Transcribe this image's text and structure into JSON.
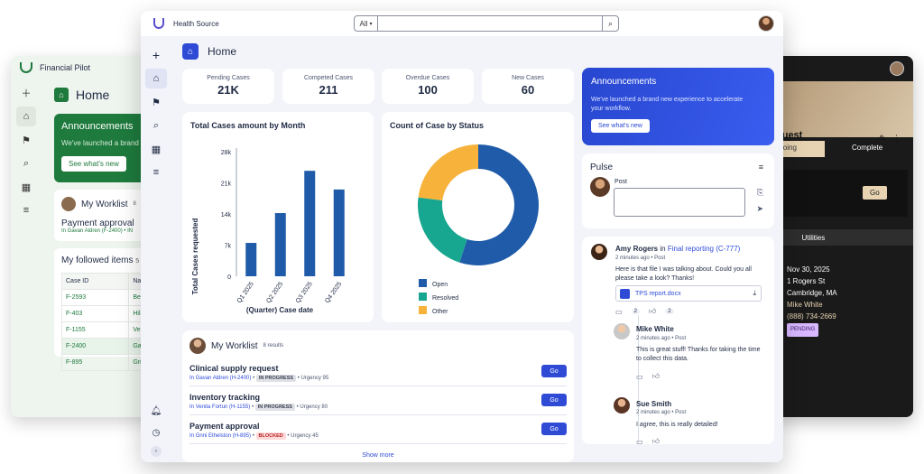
{
  "left_window": {
    "app_name": "Financial Pilot",
    "page_title": "Home",
    "announcement": {
      "title": "Announcements",
      "text": "We've launched a brand ne",
      "button": "See what's new"
    },
    "worklist": {
      "title": "My Worklist",
      "count": "8",
      "item_title": "Payment approval",
      "item_sub": "In Gavan Aldren (F-2400) • IN"
    },
    "followed": {
      "title": "My followed items",
      "count": "5",
      "columns": [
        "Case ID",
        "Name"
      ],
      "rows": [
        {
          "id": "F-2593",
          "name": "Beth"
        },
        {
          "id": "F-403",
          "name": "Hilari"
        },
        {
          "id": "F-1155",
          "name": "Venit"
        },
        {
          "id": "F-2400",
          "name": "Gava"
        },
        {
          "id": "F-895",
          "name": "Gnni"
        }
      ]
    }
  },
  "right_window": {
    "title_fragment": "quest",
    "stage_doing": "Doing",
    "stage_complete": "Complete",
    "go_label": "Go",
    "tab_1": "se",
    "tab_2": "Utilities",
    "date": "Nov 30, 2025",
    "address_1": "1 Rogers St",
    "address_2": "Cambridge, MA",
    "person": "Mike White",
    "phone": "(888) 734-2669",
    "status": "PENDING"
  },
  "main": {
    "app_name": "Health Source",
    "search": {
      "scope": "All",
      "placeholder": ""
    },
    "page_title": "Home",
    "kpis": [
      {
        "label": "Pending Cases",
        "value": "21K"
      },
      {
        "label": "Competed Cases",
        "value": "211"
      },
      {
        "label": "Overdue Cases",
        "value": "100"
      },
      {
        "label": "New Cases",
        "value": "60"
      }
    ],
    "announcement": {
      "title": "Announcements",
      "text": "We've launched a brand new experience to accelerate your workflow.",
      "button": "See what's new"
    },
    "pulse": {
      "title": "Pulse",
      "post_label": "Post"
    },
    "feed": {
      "post1": {
        "author": "Amy Rogers",
        "connector": "in",
        "target": "Final reporting (C-777)",
        "meta": "2 minutes ago • Post",
        "text": "Here is that file I was talking about. Could you all please take a look? Thanks!",
        "file": "TPS report.docx",
        "comments": "2",
        "likes": "2"
      },
      "reply1": {
        "author": "Mike White",
        "meta": "2 minutes ago • Post",
        "text": "This is great stuff! Thanks for taking the time to collect this data."
      },
      "reply2": {
        "author": "Sue Smith",
        "meta": "2 minutes ago • Post",
        "text": "I agree, this is really detailed!"
      }
    },
    "worklist": {
      "title": "My Worklist",
      "count": "8 results",
      "rows": [
        {
          "title": "Clinical supply request",
          "prefix": "In",
          "owner": "Gavan Aldren (H-2400)",
          "status": "IN PROGRESS",
          "urgency": "Urgency 95",
          "go": "Go"
        },
        {
          "title": "Inventory tracking",
          "prefix": "In",
          "owner": "Venita Fortun (H-1155)",
          "status": "IN PROGRESS",
          "urgency": "Urgency 80",
          "go": "Go"
        },
        {
          "title": "Payment approval",
          "prefix": "In",
          "owner": "Gnni Ethelston (H-895)",
          "status": "BLOCKED",
          "urgency": "Urgency 45",
          "go": "Go"
        }
      ],
      "show_more": "Show more"
    }
  },
  "chart_data": [
    {
      "type": "bar",
      "title": "Total Cases amount by Month",
      "xlabel": "(Quarter) Case date",
      "ylabel": "Total Cases requested",
      "categories": [
        "Q1 2025",
        "Q2 2025",
        "Q3 2025",
        "Q4 2025"
      ],
      "values": [
        7500,
        14200,
        23700,
        19500
      ],
      "yticks": [
        "0",
        "7k",
        "14k",
        "21k",
        "28k"
      ],
      "ylim": [
        0,
        28000
      ],
      "color": "#1f5ba8"
    },
    {
      "type": "pie",
      "title": "Count of Case by Status",
      "labels": [
        "Open",
        "Resolved",
        "Other"
      ],
      "values": [
        55,
        22,
        23
      ],
      "colors": [
        "#1f5ba8",
        "#17a68f",
        "#f7b23b"
      ],
      "legend": "bottom"
    }
  ]
}
